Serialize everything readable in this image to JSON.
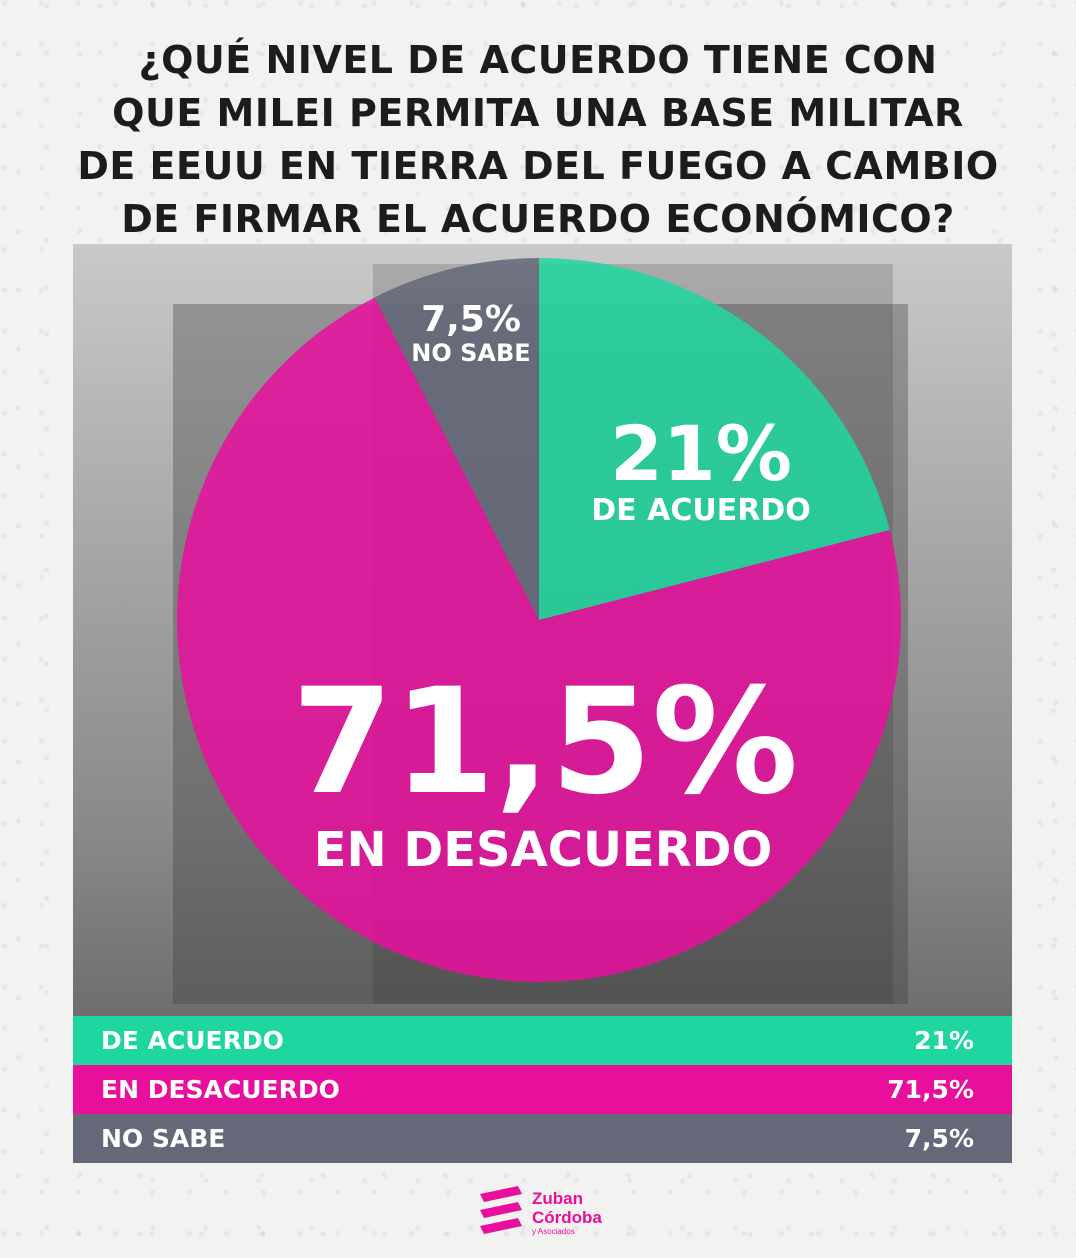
{
  "title_lines": [
    "¿QUÉ NIVEL DE ACUERDO TIENE CON",
    "QUE MILEI PERMITA UNA BASE MILITAR",
    "DE EEUU EN TIERRA DEL FUEGO A CAMBIO",
    "DE FIRMAR EL ACUERDO ECONÓMICO?"
  ],
  "chart_data": {
    "type": "pie",
    "title": "¿QUÉ NIVEL DE ACUERDO TIENE CON QUE MILEI PERMITA UNA BASE MILITAR DE EEUU EN TIERRA DEL FUEGO A CAMBIO DE FIRMAR EL ACUERDO ECONÓMICO?",
    "slices": [
      {
        "name": "DE ACUERDO",
        "value": 21,
        "label": "21%",
        "color": "#1fd6a0"
      },
      {
        "name": "EN DESACUERDO",
        "value": 71.5,
        "label": "71,5%",
        "color": "#e80f9d"
      },
      {
        "name": "NO SABE",
        "value": 7.5,
        "label": "7,5%",
        "color": "#646878"
      }
    ]
  },
  "legend": [
    {
      "label": "DE ACUERDO",
      "value": "21%"
    },
    {
      "label": "EN DESACUERDO",
      "value": "71,5%"
    },
    {
      "label": "NO SABE",
      "value": "7,5%"
    }
  ],
  "brand": {
    "line1": "Zuban",
    "line2": "Córdoba",
    "line3": "y Asociados",
    "color": "#e80f9d"
  }
}
